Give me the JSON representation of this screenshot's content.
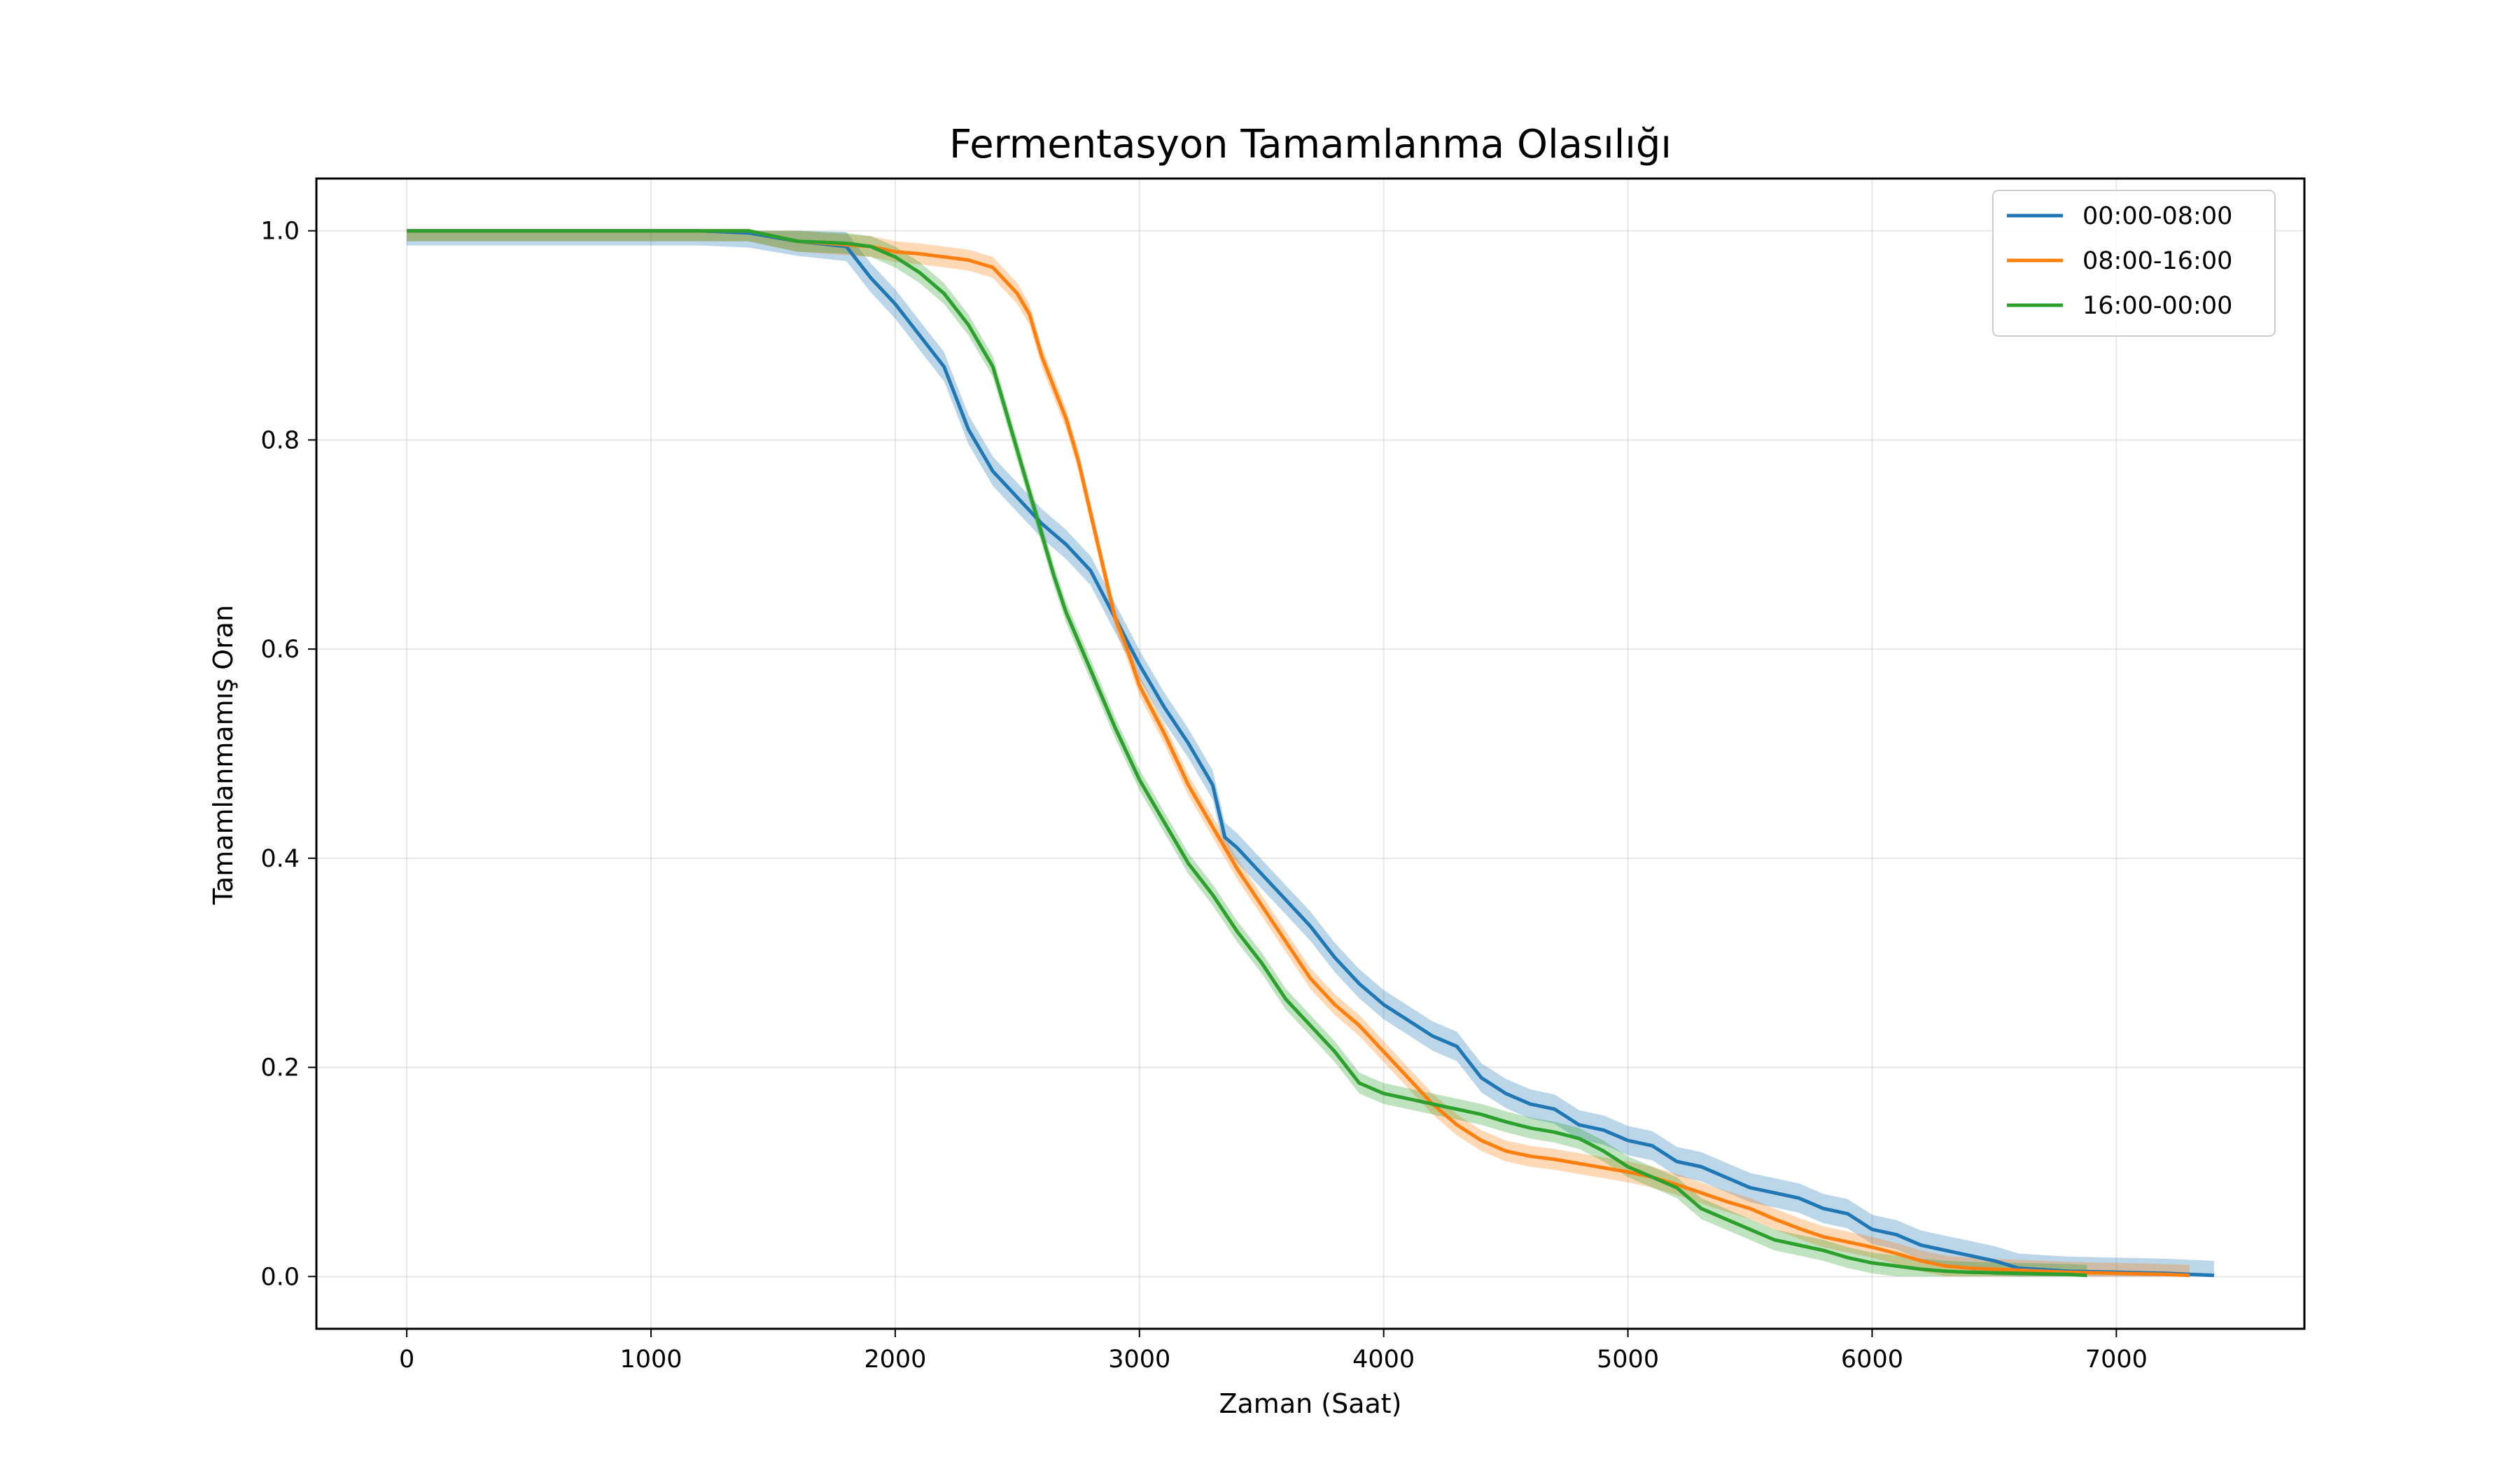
{
  "chart_data": {
    "type": "line",
    "title": "Fermentasyon Tamamlanma Olasılığı",
    "xlabel": "Zaman (Saat)",
    "ylabel": "Tamamlanmamış Oran",
    "xlim": [
      -370,
      7770
    ],
    "ylim": [
      -0.05,
      1.05
    ],
    "xticks": [
      0,
      1000,
      2000,
      3000,
      4000,
      5000,
      6000,
      7000
    ],
    "yticks": [
      0.0,
      0.2,
      0.4,
      0.6,
      0.8,
      1.0
    ],
    "xtick_labels": [
      "0",
      "1000",
      "2000",
      "3000",
      "4000",
      "5000",
      "6000",
      "7000"
    ],
    "ytick_labels": [
      "0.0",
      "0.2",
      "0.4",
      "0.6",
      "0.8",
      "1.0"
    ],
    "grid": true,
    "legend_position": "top-right",
    "confidence_band": true,
    "series": [
      {
        "name": "00:00-08:00",
        "color": "#1f77b4",
        "band_halfwidth": 0.014,
        "points": [
          [
            0,
            1.0
          ],
          [
            1200,
            1.0
          ],
          [
            1400,
            0.998
          ],
          [
            1600,
            0.99
          ],
          [
            1800,
            0.985
          ],
          [
            1850,
            0.97
          ],
          [
            1900,
            0.955
          ],
          [
            2000,
            0.93
          ],
          [
            2100,
            0.9
          ],
          [
            2200,
            0.87
          ],
          [
            2300,
            0.81
          ],
          [
            2400,
            0.77
          ],
          [
            2500,
            0.745
          ],
          [
            2600,
            0.72
          ],
          [
            2700,
            0.7
          ],
          [
            2800,
            0.675
          ],
          [
            2900,
            0.63
          ],
          [
            3000,
            0.585
          ],
          [
            3100,
            0.545
          ],
          [
            3200,
            0.51
          ],
          [
            3300,
            0.47
          ],
          [
            3350,
            0.42
          ],
          [
            3400,
            0.41
          ],
          [
            3500,
            0.385
          ],
          [
            3600,
            0.36
          ],
          [
            3700,
            0.335
          ],
          [
            3800,
            0.305
          ],
          [
            3900,
            0.28
          ],
          [
            4000,
            0.26
          ],
          [
            4100,
            0.245
          ],
          [
            4200,
            0.23
          ],
          [
            4300,
            0.22
          ],
          [
            4400,
            0.19
          ],
          [
            4500,
            0.175
          ],
          [
            4600,
            0.165
          ],
          [
            4700,
            0.16
          ],
          [
            4800,
            0.145
          ],
          [
            4900,
            0.14
          ],
          [
            5000,
            0.13
          ],
          [
            5100,
            0.125
          ],
          [
            5200,
            0.11
          ],
          [
            5300,
            0.105
          ],
          [
            5400,
            0.095
          ],
          [
            5500,
            0.085
          ],
          [
            5600,
            0.08
          ],
          [
            5700,
            0.075
          ],
          [
            5800,
            0.065
          ],
          [
            5900,
            0.06
          ],
          [
            6000,
            0.045
          ],
          [
            6100,
            0.04
          ],
          [
            6200,
            0.03
          ],
          [
            6300,
            0.025
          ],
          [
            6400,
            0.02
          ],
          [
            6500,
            0.015
          ],
          [
            6600,
            0.008
          ],
          [
            6800,
            0.005
          ],
          [
            7000,
            0.004
          ],
          [
            7200,
            0.003
          ],
          [
            7400,
            0.001
          ]
        ]
      },
      {
        "name": "08:00-16:00",
        "color": "#ff7f0e",
        "band_halfwidth": 0.01,
        "points": [
          [
            0,
            1.0
          ],
          [
            1400,
            1.0
          ],
          [
            1600,
            0.99
          ],
          [
            1900,
            0.985
          ],
          [
            2000,
            0.98
          ],
          [
            2100,
            0.978
          ],
          [
            2200,
            0.975
          ],
          [
            2300,
            0.972
          ],
          [
            2400,
            0.965
          ],
          [
            2500,
            0.94
          ],
          [
            2550,
            0.92
          ],
          [
            2600,
            0.88
          ],
          [
            2650,
            0.85
          ],
          [
            2700,
            0.82
          ],
          [
            2750,
            0.78
          ],
          [
            2800,
            0.73
          ],
          [
            2850,
            0.68
          ],
          [
            2900,
            0.63
          ],
          [
            2950,
            0.6
          ],
          [
            3000,
            0.565
          ],
          [
            3100,
            0.52
          ],
          [
            3200,
            0.47
          ],
          [
            3300,
            0.43
          ],
          [
            3400,
            0.39
          ],
          [
            3500,
            0.355
          ],
          [
            3600,
            0.32
          ],
          [
            3700,
            0.285
          ],
          [
            3800,
            0.26
          ],
          [
            3900,
            0.24
          ],
          [
            4000,
            0.215
          ],
          [
            4100,
            0.19
          ],
          [
            4200,
            0.165
          ],
          [
            4300,
            0.145
          ],
          [
            4400,
            0.13
          ],
          [
            4500,
            0.12
          ],
          [
            4600,
            0.115
          ],
          [
            4700,
            0.112
          ],
          [
            4800,
            0.108
          ],
          [
            4900,
            0.104
          ],
          [
            5000,
            0.1
          ],
          [
            5100,
            0.095
          ],
          [
            5200,
            0.088
          ],
          [
            5300,
            0.08
          ],
          [
            5400,
            0.072
          ],
          [
            5500,
            0.065
          ],
          [
            5600,
            0.055
          ],
          [
            5700,
            0.046
          ],
          [
            5800,
            0.038
          ],
          [
            5900,
            0.033
          ],
          [
            6000,
            0.028
          ],
          [
            6100,
            0.022
          ],
          [
            6200,
            0.015
          ],
          [
            6300,
            0.01
          ],
          [
            6400,
            0.008
          ],
          [
            6600,
            0.006
          ],
          [
            6800,
            0.004
          ],
          [
            7000,
            0.003
          ],
          [
            7200,
            0.002
          ],
          [
            7300,
            0.001
          ]
        ]
      },
      {
        "name": "16:00-00:00",
        "color": "#2ca02c",
        "band_halfwidth": 0.01,
        "points": [
          [
            0,
            1.0
          ],
          [
            1400,
            1.0
          ],
          [
            1600,
            0.99
          ],
          [
            1800,
            0.988
          ],
          [
            1900,
            0.985
          ],
          [
            2000,
            0.975
          ],
          [
            2100,
            0.96
          ],
          [
            2200,
            0.94
          ],
          [
            2300,
            0.91
          ],
          [
            2400,
            0.87
          ],
          [
            2450,
            0.83
          ],
          [
            2500,
            0.79
          ],
          [
            2550,
            0.75
          ],
          [
            2600,
            0.71
          ],
          [
            2650,
            0.67
          ],
          [
            2700,
            0.635
          ],
          [
            2800,
            0.58
          ],
          [
            2900,
            0.525
          ],
          [
            3000,
            0.475
          ],
          [
            3100,
            0.435
          ],
          [
            3200,
            0.395
          ],
          [
            3300,
            0.365
          ],
          [
            3400,
            0.33
          ],
          [
            3500,
            0.3
          ],
          [
            3600,
            0.265
          ],
          [
            3700,
            0.24
          ],
          [
            3800,
            0.215
          ],
          [
            3900,
            0.185
          ],
          [
            4000,
            0.175
          ],
          [
            4100,
            0.17
          ],
          [
            4200,
            0.165
          ],
          [
            4300,
            0.16
          ],
          [
            4400,
            0.155
          ],
          [
            4500,
            0.148
          ],
          [
            4600,
            0.142
          ],
          [
            4700,
            0.138
          ],
          [
            4800,
            0.132
          ],
          [
            4900,
            0.12
          ],
          [
            5000,
            0.105
          ],
          [
            5100,
            0.095
          ],
          [
            5200,
            0.085
          ],
          [
            5300,
            0.065
          ],
          [
            5400,
            0.055
          ],
          [
            5500,
            0.045
          ],
          [
            5600,
            0.035
          ],
          [
            5700,
            0.03
          ],
          [
            5800,
            0.025
          ],
          [
            5900,
            0.018
          ],
          [
            6000,
            0.013
          ],
          [
            6100,
            0.01
          ],
          [
            6200,
            0.007
          ],
          [
            6300,
            0.005
          ],
          [
            6400,
            0.004
          ],
          [
            6600,
            0.003
          ],
          [
            6800,
            0.002
          ],
          [
            6880,
            0.001
          ]
        ]
      }
    ]
  }
}
